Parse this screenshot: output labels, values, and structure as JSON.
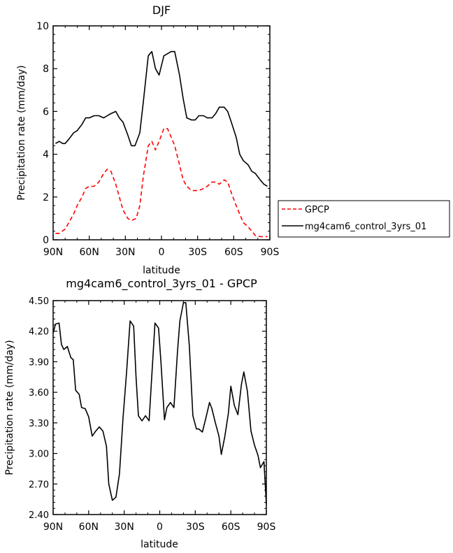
{
  "chart_data": [
    {
      "type": "line",
      "title": "DJF",
      "xlabel": "latitude",
      "ylabel": "Precipitation rate (mm/day)",
      "xticks": [
        "90N",
        "60N",
        "30N",
        "0",
        "30S",
        "60S",
        "90S"
      ],
      "xtick_values": [
        90,
        60,
        30,
        0,
        -30,
        -60,
        -90
      ],
      "xlim": [
        90,
        -90
      ],
      "ylim": [
        0,
        10
      ],
      "yticks": [
        "0",
        "2",
        "4",
        "6",
        "8",
        "10"
      ],
      "ytick_values": [
        0,
        2,
        4,
        6,
        8,
        10
      ],
      "grid": false,
      "legend_position": "right",
      "series": [
        {
          "name": "GPCP",
          "color": "#ff0000",
          "dash": "dashed",
          "x": [
            88,
            85,
            80,
            77,
            73,
            70,
            66,
            63,
            60,
            56,
            52,
            48,
            45,
            42,
            38,
            35,
            32,
            28,
            25,
            21,
            18,
            15,
            11,
            8,
            5,
            2,
            -2,
            -5,
            -8,
            -11,
            -15,
            -18,
            -21,
            -25,
            -28,
            -31,
            -35,
            -38,
            -42,
            -45,
            -48,
            -52,
            -55,
            -58,
            -62,
            -65,
            -68,
            -72,
            -75,
            -78,
            -82,
            -85,
            -88
          ],
          "y": [
            0.3,
            0.3,
            0.5,
            0.8,
            1.2,
            1.6,
            2.0,
            2.4,
            2.5,
            2.5,
            2.7,
            3.1,
            3.3,
            3.2,
            2.6,
            2.0,
            1.4,
            1.0,
            0.9,
            1.0,
            1.6,
            3.0,
            4.4,
            4.6,
            4.2,
            4.6,
            5.2,
            5.2,
            4.8,
            4.4,
            3.5,
            2.8,
            2.5,
            2.3,
            2.3,
            2.3,
            2.4,
            2.5,
            2.7,
            2.7,
            2.6,
            2.8,
            2.7,
            2.2,
            1.6,
            1.2,
            0.8,
            0.6,
            0.4,
            0.2,
            0.15,
            0.15,
            0.15
          ]
        },
        {
          "name": "mg4cam6_control_3yrs_01",
          "color": "#000000",
          "dash": "solid",
          "x": [
            88,
            85,
            82,
            80,
            77,
            73,
            70,
            66,
            63,
            60,
            56,
            52,
            48,
            45,
            42,
            38,
            35,
            32,
            28,
            25,
            22,
            18,
            15,
            11,
            8,
            5,
            2,
            -2,
            -5,
            -8,
            -11,
            -15,
            -18,
            -21,
            -25,
            -28,
            -31,
            -35,
            -38,
            -42,
            -45,
            -48,
            -52,
            -55,
            -58,
            -62,
            -65,
            -68,
            -72,
            -75,
            -78,
            -82,
            -85,
            -88
          ],
          "y": [
            4.5,
            4.6,
            4.5,
            4.5,
            4.7,
            5.0,
            5.1,
            5.4,
            5.7,
            5.7,
            5.8,
            5.8,
            5.7,
            5.8,
            5.9,
            6.0,
            5.7,
            5.5,
            4.9,
            4.4,
            4.4,
            5.0,
            6.5,
            8.6,
            8.8,
            8.0,
            7.7,
            8.6,
            8.7,
            8.8,
            8.8,
            7.7,
            6.6,
            5.7,
            5.6,
            5.6,
            5.8,
            5.8,
            5.7,
            5.7,
            5.9,
            6.2,
            6.2,
            6.0,
            5.5,
            4.8,
            4.0,
            3.7,
            3.5,
            3.2,
            3.1,
            2.8,
            2.6,
            2.5
          ]
        }
      ]
    },
    {
      "type": "line",
      "title": "mg4cam6_control_3yrs_01 - GPCP",
      "xlabel": "latitude",
      "ylabel": "Precipitation rate (mm/day)",
      "xticks": [
        "90N",
        "60N",
        "30N",
        "0",
        "30S",
        "60S",
        "90S"
      ],
      "xtick_values": [
        90,
        60,
        30,
        0,
        -30,
        -60,
        -90
      ],
      "xlim": [
        90,
        -90
      ],
      "ylim": [
        2.4,
        4.5
      ],
      "yticks": [
        "2.40",
        "2.70",
        "3.00",
        "3.30",
        "3.60",
        "3.90",
        "4.20",
        "4.50"
      ],
      "ytick_values": [
        2.4,
        2.7,
        3.0,
        3.3,
        3.6,
        3.9,
        4.2,
        4.5
      ],
      "grid": false,
      "series": [
        {
          "color": "#000000",
          "dash": "solid",
          "x": [
            90,
            88,
            85,
            83,
            81,
            78,
            75,
            73,
            71,
            68,
            66,
            63,
            60,
            57,
            54,
            51,
            48,
            45,
            43,
            40,
            37,
            34,
            31,
            28,
            25,
            22,
            20,
            18,
            15,
            12,
            9,
            7,
            4,
            1,
            -1,
            -4,
            -6,
            -9,
            -12,
            -15,
            -17,
            -20,
            -22,
            -25,
            -28,
            -31,
            -33,
            -36,
            -39,
            -42,
            -44,
            -47,
            -50,
            -52,
            -55,
            -58,
            -60,
            -63,
            -66,
            -69,
            -71,
            -74,
            -77,
            -80,
            -83,
            -85,
            -88,
            -90
          ],
          "y": [
            4.18,
            4.27,
            4.28,
            4.07,
            4.02,
            4.05,
            3.94,
            3.92,
            3.62,
            3.58,
            3.45,
            3.44,
            3.36,
            3.17,
            3.22,
            3.26,
            3.22,
            3.07,
            2.7,
            2.54,
            2.57,
            2.8,
            3.35,
            3.8,
            4.3,
            4.25,
            3.75,
            3.37,
            3.32,
            3.37,
            3.32,
            3.7,
            4.28,
            4.23,
            3.9,
            3.33,
            3.45,
            3.5,
            3.45,
            4.0,
            4.3,
            4.48,
            4.48,
            4.05,
            3.37,
            3.24,
            3.24,
            3.21,
            3.35,
            3.5,
            3.44,
            3.3,
            3.17,
            2.99,
            3.17,
            3.4,
            3.66,
            3.47,
            3.38,
            3.68,
            3.8,
            3.61,
            3.22,
            3.08,
            2.98,
            2.86,
            2.92,
            2.5
          ]
        }
      ]
    }
  ]
}
